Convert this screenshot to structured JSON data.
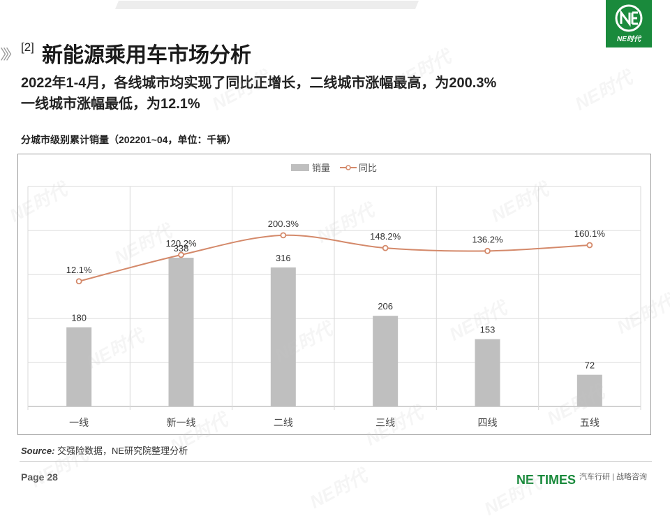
{
  "header": {
    "section_tag": "[2]",
    "title": "新能源乘用车市场分析",
    "headline_line1": "2022年1-4月，各线城市均实现了同比正增长，二线城市涨幅最高，为200.3%",
    "headline_line2": "一线城市涨幅最低，为12.1%",
    "logo_text": "NE时代"
  },
  "chart_caption": "分城市级别累计销量（202201~04，单位：千辆）",
  "chart_data": {
    "type": "bar",
    "categories": [
      "一线",
      "新一线",
      "二线",
      "三线",
      "四线",
      "五线"
    ],
    "series": [
      {
        "name": "销量",
        "type": "bar",
        "values": [
          180,
          338,
          316,
          206,
          153,
          72
        ],
        "labels": [
          "180",
          "338",
          "316",
          "206",
          "153",
          "72"
        ],
        "color": "#bfbfbf"
      },
      {
        "name": "同比",
        "type": "line",
        "smooth": true,
        "values": [
          12.1,
          120.2,
          200.3,
          148.2,
          136.2,
          160.1
        ],
        "labels": [
          "12.1%",
          "120.2%",
          "200.3%",
          "148.2%",
          "136.2%",
          "160.1%"
        ],
        "color": "#d4896a"
      }
    ],
    "ylim_bar": [
      0,
      500
    ],
    "ylim_line": [
      -500,
      400
    ],
    "grid": true,
    "legend_position": "top-center"
  },
  "source_label": "Source:",
  "source_text": "交强险数据，NE研究院整理分析",
  "footer": {
    "page": "Page 28",
    "brand": "NE TIMES",
    "tagline": "汽车行研 | 战略咨询"
  },
  "watermark_text": "NE时代"
}
